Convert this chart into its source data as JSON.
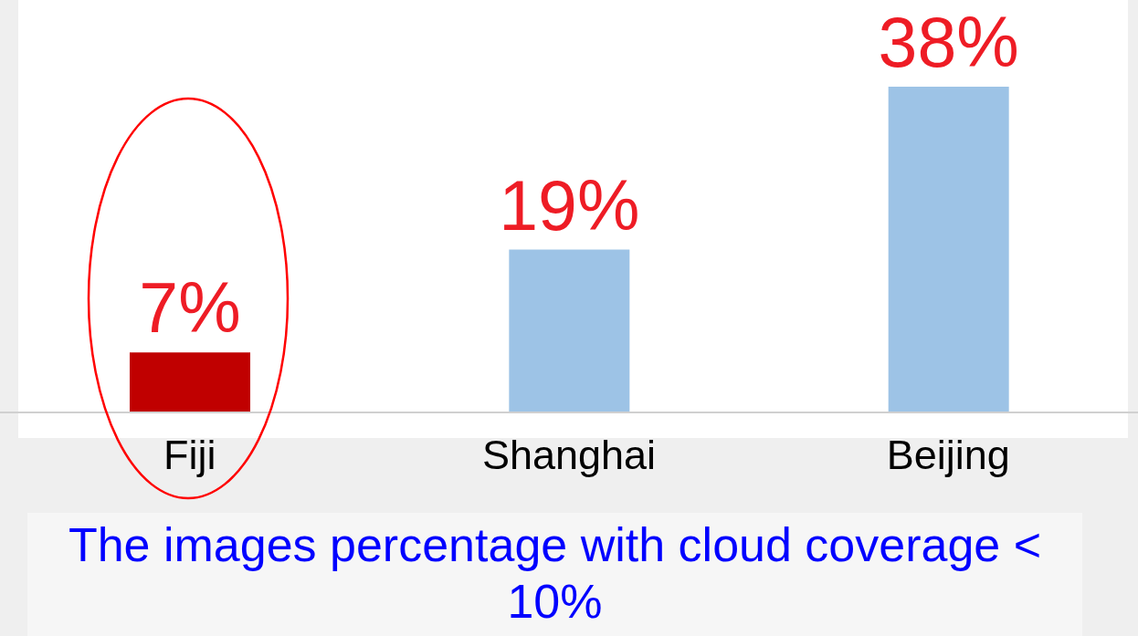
{
  "chart_data": {
    "type": "bar",
    "categories": [
      "Fiji",
      "Shanghai",
      "Beijing"
    ],
    "values": [
      7,
      19,
      38
    ],
    "colors": [
      "#c00000",
      "#9dc3e6",
      "#9dc3e6"
    ],
    "value_labels": [
      "7%",
      "19%",
      "38%"
    ],
    "annotations": [
      "The images percentage with cloud coverage < 10%"
    ]
  }
}
